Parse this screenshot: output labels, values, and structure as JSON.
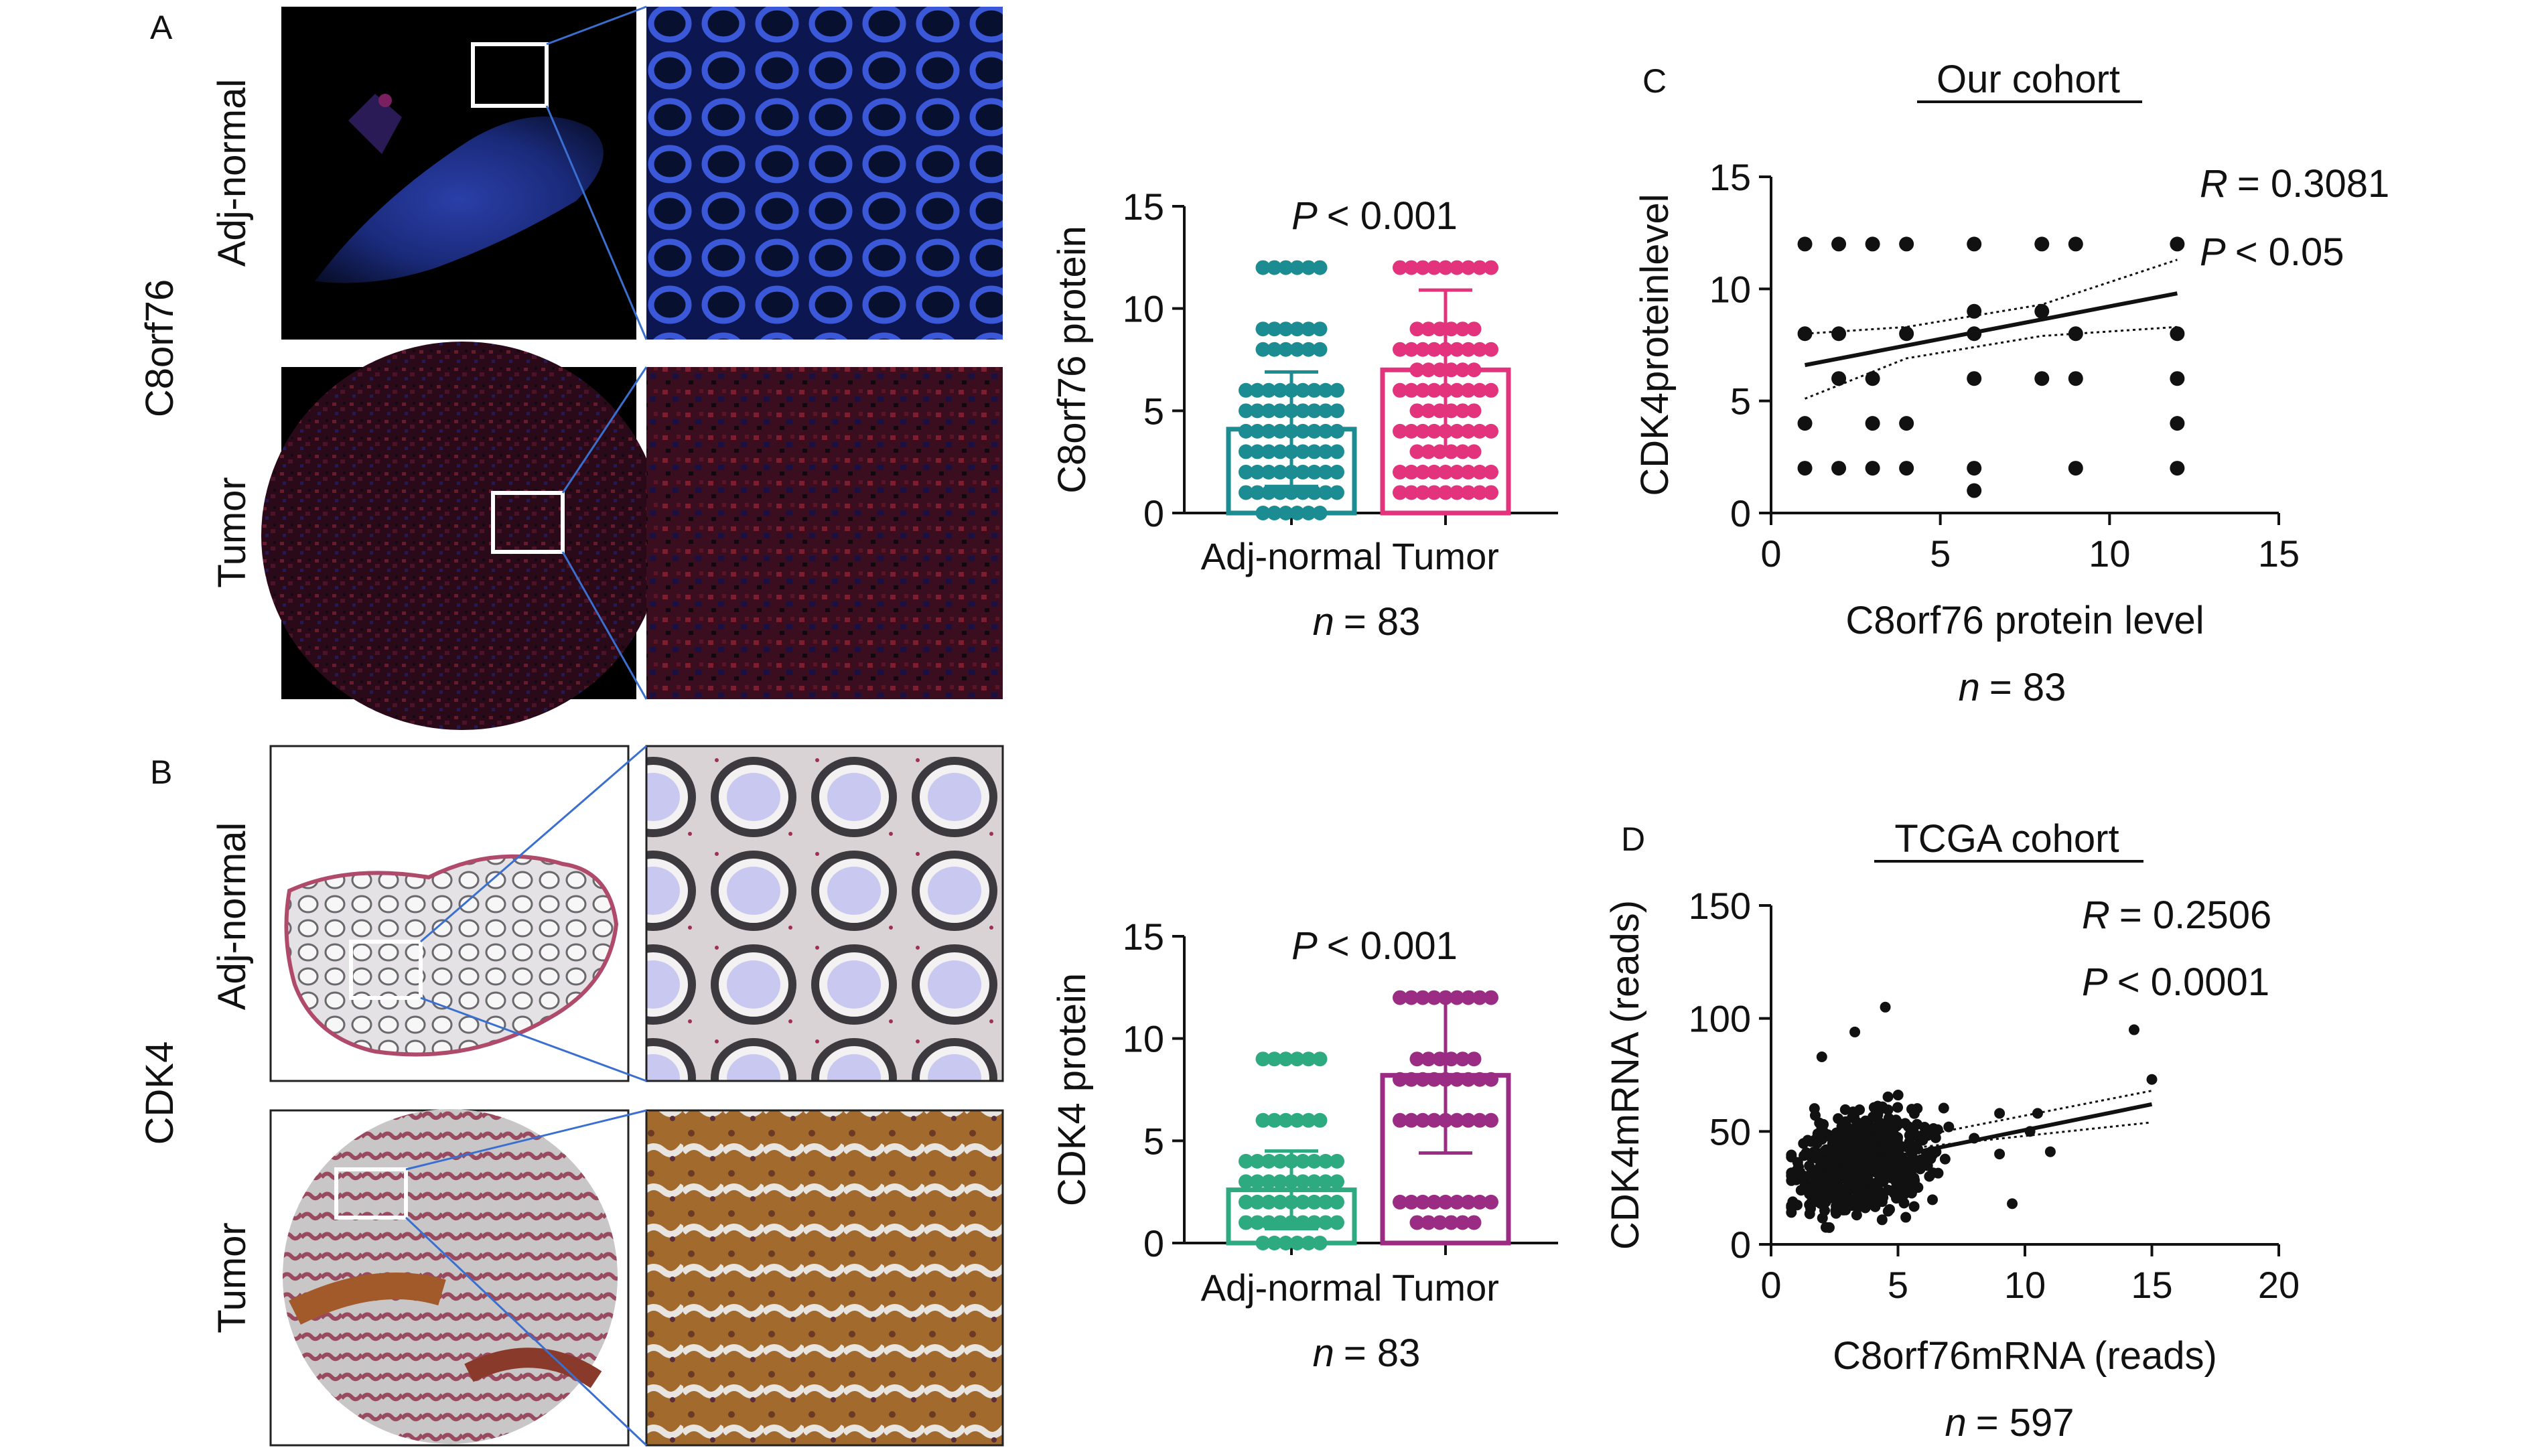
{
  "figure": {
    "panel_a": {
      "letter": "A",
      "marker": "C8orf76",
      "row_labels": [
        "Adj-normal",
        "Tumor"
      ]
    },
    "panel_b": {
      "letter": "B",
      "marker": "CDK4",
      "row_labels": [
        "Adj-normal",
        "Tumor"
      ]
    },
    "panel_c": {
      "letter": "C",
      "cohort_title": "Our cohort",
      "r_label": "R",
      "r_value": "= 0.3081",
      "p_label": "P",
      "p_value": "< 0.05",
      "n_label": "n",
      "n_value": "= 83"
    },
    "panel_d": {
      "letter": "D",
      "cohort_title": "TCGA cohort",
      "r_label": "R",
      "r_value": "= 0.2506",
      "p_label": "P",
      "p_value": "< 0.0001",
      "n_label": "n",
      "n_value": "= 597"
    },
    "bar_a_stats": {
      "p_label": "P",
      "p_value": "< 0.001",
      "n_label": "n",
      "n_value": "= 83"
    },
    "bar_b_stats": {
      "p_label": "P",
      "p_value": "< 0.001",
      "n_label": "n",
      "n_value": "= 83"
    },
    "colors": {
      "teal": "#1a8c92",
      "pink": "#e2337c",
      "green": "#2eaa80",
      "purple": "#9a2c84",
      "ink": "#111111"
    }
  },
  "chart_data": [
    {
      "id": "bar-c8orf76",
      "type": "bar",
      "categories": [
        "Adj-normal",
        "Tumor"
      ],
      "values": [
        4.1,
        7.0
      ],
      "error_sd": [
        2.8,
        3.9
      ],
      "ylabel": "C8orf76 protein",
      "ylim": [
        0,
        15
      ],
      "yticks": [
        "0",
        "5",
        "10",
        "15"
      ],
      "points": [
        [
          0,
          1,
          1,
          2,
          2,
          2,
          3,
          3,
          3,
          4,
          4,
          5,
          5,
          6,
          6,
          6,
          8,
          9,
          12
        ],
        [
          1,
          1,
          2,
          2,
          3,
          4,
          4,
          5,
          6,
          6,
          7,
          8,
          8,
          9,
          12,
          12,
          12
        ]
      ],
      "colors": [
        "#1a8c92",
        "#e2337c"
      ]
    },
    {
      "id": "bar-cdk4",
      "type": "bar",
      "categories": [
        "Adj-normal",
        "Tumor"
      ],
      "values": [
        2.6,
        8.2
      ],
      "error_sd": [
        1.9,
        3.8
      ],
      "ylabel": "CDK4 protein",
      "ylim": [
        0,
        15
      ],
      "yticks": [
        "0",
        "5",
        "10",
        "15"
      ],
      "points": [
        [
          0,
          1,
          1,
          1,
          2,
          2,
          2,
          3,
          3,
          4,
          4,
          6,
          9
        ],
        [
          1,
          2,
          2,
          6,
          6,
          8,
          8,
          9,
          12,
          12,
          12
        ]
      ],
      "colors": [
        "#2eaa80",
        "#9a2c84"
      ]
    },
    {
      "id": "scatter-our-cohort",
      "type": "scatter",
      "title": "Our cohort",
      "xlabel": "C8orf76 protein level",
      "ylabel": "CDK4proteinlevel",
      "xlim": [
        0,
        15
      ],
      "ylim": [
        0,
        15
      ],
      "xticks": [
        "0",
        "5",
        "10",
        "15"
      ],
      "yticks": [
        "0",
        "5",
        "10",
        "15"
      ],
      "points": [
        [
          1,
          2
        ],
        [
          1,
          4
        ],
        [
          1,
          8
        ],
        [
          1,
          12
        ],
        [
          2,
          2
        ],
        [
          2,
          6
        ],
        [
          2,
          8
        ],
        [
          2,
          12
        ],
        [
          3,
          2
        ],
        [
          3,
          4
        ],
        [
          3,
          6
        ],
        [
          3,
          12
        ],
        [
          4,
          2
        ],
        [
          4,
          4
        ],
        [
          4,
          8
        ],
        [
          4,
          12
        ],
        [
          6,
          1
        ],
        [
          6,
          2
        ],
        [
          6,
          6
        ],
        [
          6,
          8
        ],
        [
          6,
          9
        ],
        [
          6,
          12
        ],
        [
          8,
          6
        ],
        [
          8,
          9
        ],
        [
          8,
          12
        ],
        [
          9,
          2
        ],
        [
          9,
          6
        ],
        [
          9,
          8
        ],
        [
          9,
          12
        ],
        [
          12,
          2
        ],
        [
          12,
          4
        ],
        [
          12,
          6
        ],
        [
          12,
          8
        ],
        [
          12,
          12
        ]
      ],
      "fit": {
        "x": [
          1,
          12
        ],
        "y": [
          6.6,
          9.8
        ]
      },
      "ci_upper": {
        "x": [
          1,
          4,
          8,
          12
        ],
        "y": [
          8.0,
          8.3,
          9.3,
          11.3
        ]
      },
      "ci_lower": {
        "x": [
          1,
          4,
          8,
          12
        ],
        "y": [
          5.1,
          6.9,
          7.9,
          8.3
        ]
      },
      "R": 0.3081,
      "P": "< 0.05",
      "n": 83
    },
    {
      "id": "scatter-tcga",
      "type": "scatter",
      "title": "TCGA cohort",
      "xlabel": "C8orf76mRNA (reads)",
      "ylabel": "CDK4mRNA (reads)",
      "xlim": [
        0,
        20
      ],
      "ylim": [
        0,
        150
      ],
      "xticks": [
        "0",
        "5",
        "10",
        "15",
        "20"
      ],
      "yticks": [
        "0",
        "50",
        "100",
        "150"
      ],
      "cloud": {
        "x_center": 3.6,
        "y_center": 36,
        "x_spread": 1.3,
        "y_spread": 11
      },
      "points_extra": [
        [
          14.3,
          95
        ],
        [
          15,
          73
        ],
        [
          9,
          58
        ],
        [
          10.5,
          58
        ],
        [
          7,
          52
        ],
        [
          8,
          47
        ],
        [
          11,
          41
        ],
        [
          9,
          40
        ],
        [
          9.5,
          18
        ],
        [
          4.5,
          105
        ],
        [
          3.3,
          94
        ],
        [
          2,
          83
        ],
        [
          10.2,
          50
        ]
      ],
      "fit": {
        "x": [
          1,
          15
        ],
        "y": [
          30,
          62
        ]
      },
      "ci_upper": {
        "x": [
          1,
          5,
          15
        ],
        "y": [
          32,
          46,
          68
        ]
      },
      "ci_lower": {
        "x": [
          1,
          5,
          15
        ],
        "y": [
          28,
          42,
          54
        ]
      },
      "R": 0.2506,
      "P": "< 0.0001",
      "n": 597
    }
  ]
}
